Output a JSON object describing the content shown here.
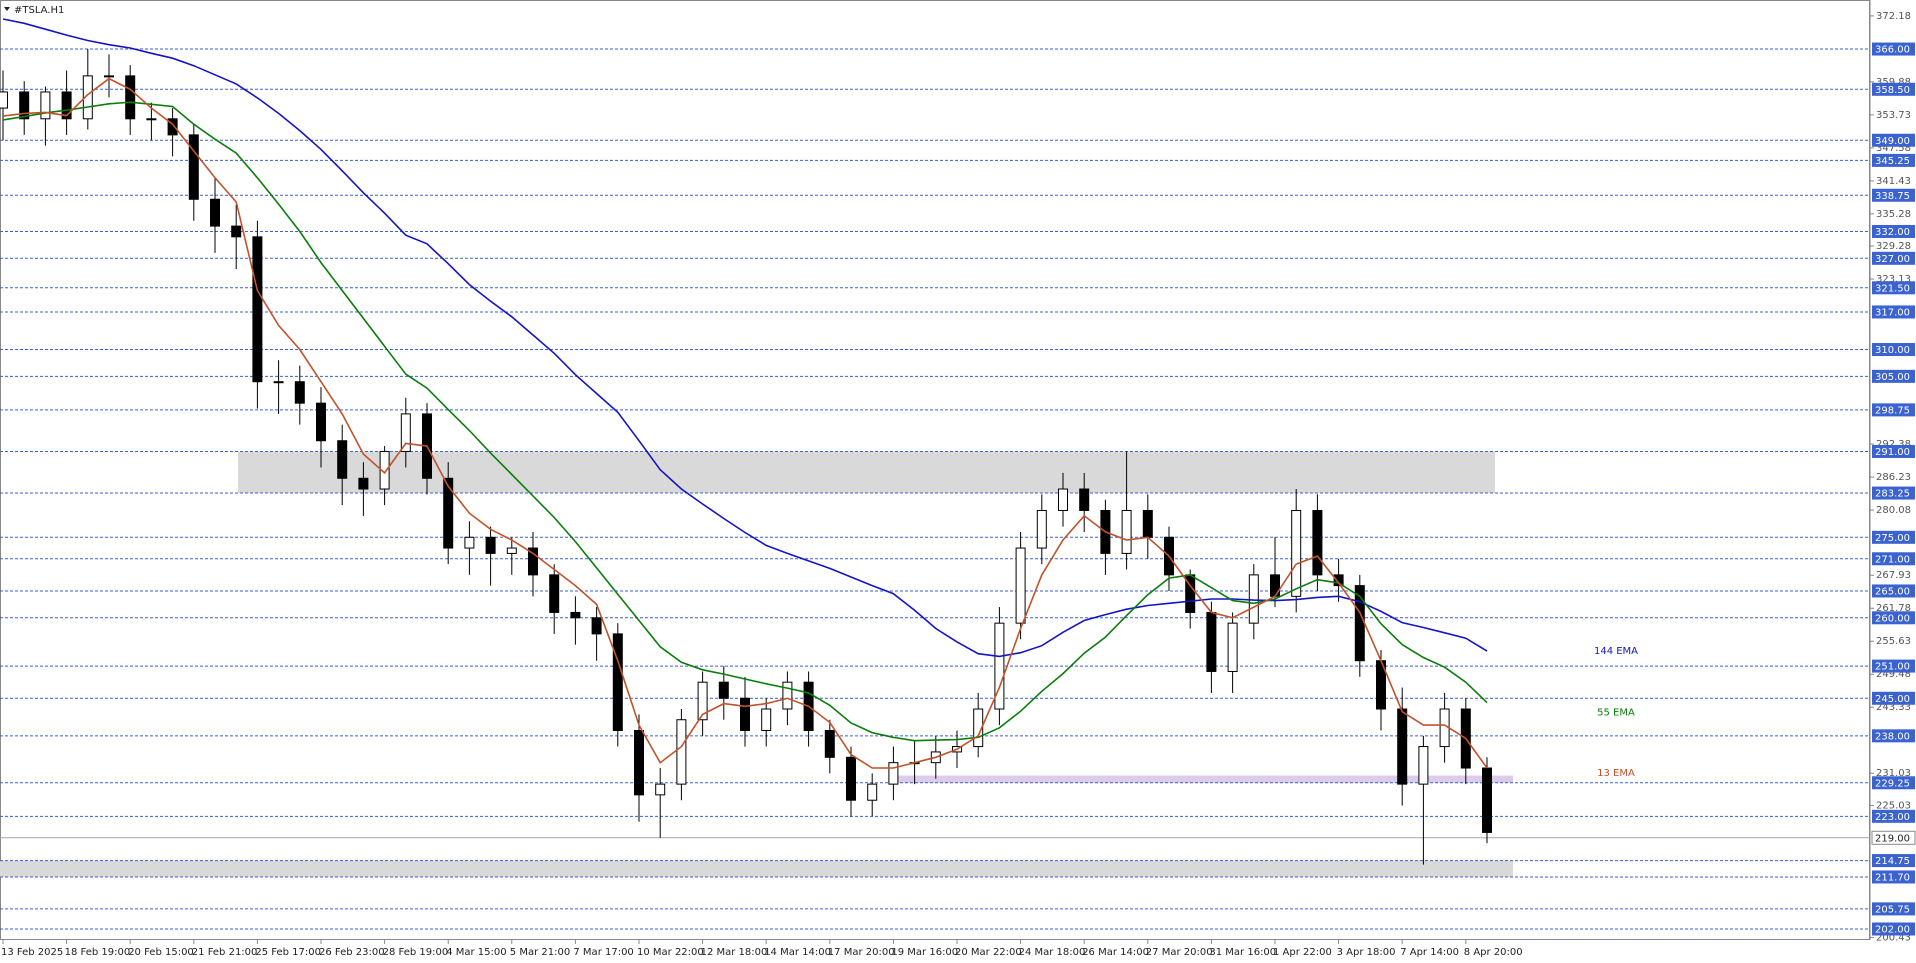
{
  "chart_data": {
    "type": "candlestick",
    "title": "#TSLA.H1",
    "categories": [
      "13 Feb 2025",
      null,
      null,
      "18 Feb 19:00",
      null,
      null,
      "20 Feb 15:00",
      null,
      null,
      "21 Feb 21:00",
      null,
      null,
      "25 Feb 17:00",
      null,
      null,
      "26 Feb 23:00",
      null,
      null,
      "28 Feb 19:00",
      null,
      null,
      "4 Mar 15:00",
      null,
      null,
      "5 Mar 21:00",
      null,
      null,
      "7 Mar 17:00",
      null,
      null,
      "10 Mar 22:00",
      null,
      null,
      "12 Mar 18:00",
      null,
      null,
      "14 Mar 14:00",
      null,
      null,
      "17 Mar 20:00",
      null,
      null,
      "19 Mar 16:00",
      null,
      null,
      "20 Mar 22:00",
      null,
      null,
      "24 Mar 18:00",
      null,
      null,
      "26 Mar 14:00",
      null,
      null,
      "27 Mar 20:00",
      null,
      null,
      "31 Mar 16:00",
      null,
      null,
      "1 Apr 22:00",
      null,
      null,
      "3 Apr 18:00",
      null,
      null,
      "7 Apr 14:00",
      null,
      null,
      "8 Apr 20:00",
      null
    ],
    "open": [
      355,
      358,
      353,
      358,
      353,
      361,
      361,
      353,
      353,
      350,
      338,
      333,
      331,
      304,
      304,
      300,
      293,
      286,
      284,
      291,
      298,
      286,
      273,
      275,
      272,
      273,
      268,
      261,
      260,
      257,
      239,
      227,
      229,
      241,
      248,
      245,
      239,
      243,
      248,
      239,
      234,
      226,
      229,
      233,
      233,
      235,
      236,
      243,
      259,
      273,
      280,
      284,
      280,
      272,
      280,
      275,
      268,
      261,
      250,
      259,
      268,
      264,
      280,
      268,
      266,
      252,
      243,
      229,
      236,
      243,
      232
    ],
    "high": [
      362,
      360,
      359,
      362,
      366,
      365,
      363,
      356,
      355,
      352,
      342,
      337,
      334,
      308,
      307,
      303,
      296,
      289,
      292,
      301,
      300,
      289,
      278,
      277,
      275,
      276,
      270,
      264,
      262,
      259,
      242,
      232,
      243,
      250,
      251,
      249,
      245,
      250,
      250,
      241,
      236,
      231,
      236,
      237,
      238,
      239,
      246,
      262,
      276,
      283,
      287,
      287,
      282,
      291,
      283,
      277,
      269,
      263,
      261,
      270,
      275,
      284,
      283,
      271,
      268,
      254,
      247,
      238,
      246,
      245,
      234
    ],
    "low": [
      349,
      350,
      348,
      350,
      351,
      357,
      350,
      349,
      346,
      334,
      328,
      325,
      299,
      298,
      296,
      288,
      281,
      279,
      281,
      288,
      283,
      270,
      268,
      266,
      268,
      264,
      257,
      255,
      252,
      236,
      222,
      219,
      226,
      238,
      241,
      236,
      236,
      240,
      236,
      231,
      223,
      223,
      226,
      229,
      230,
      232,
      234,
      240,
      256,
      270,
      277,
      276,
      268,
      269,
      271,
      265,
      258,
      246,
      246,
      256,
      262,
      261,
      265,
      263,
      249,
      239,
      225,
      214,
      233,
      229,
      218
    ],
    "close": [
      358,
      353,
      358,
      353,
      361,
      361,
      353,
      353,
      350,
      338,
      333,
      331,
      304,
      304,
      300,
      293,
      286,
      284,
      291,
      298,
      286,
      273,
      275,
      272,
      273,
      268,
      261,
      260,
      257,
      239,
      227,
      229,
      241,
      248,
      245,
      239,
      243,
      248,
      239,
      234,
      226,
      229,
      233,
      233,
      235,
      236,
      243,
      259,
      273,
      280,
      284,
      280,
      272,
      280,
      275,
      268,
      261,
      250,
      259,
      268,
      264,
      280,
      268,
      266,
      252,
      243,
      229,
      236,
      243,
      232,
      220
    ],
    "up_color": "#ffffff",
    "down_color": "#000000",
    "series": [
      {
        "name": "144 EMA",
        "color": "#1414c8",
        "values": [
          371.6,
          370.8,
          369.7,
          368.6,
          367.6,
          366.8,
          366.2,
          365.2,
          364.3,
          362.9,
          361.2,
          359.5,
          356.9,
          354.0,
          350.8,
          347.3,
          343.3,
          339.2,
          335.4,
          331.3,
          329.7,
          326.0,
          322.1,
          319.0,
          316.1,
          312.7,
          309.3,
          305.3,
          301.8,
          298.3,
          293.0,
          287.6,
          284.0,
          281.2,
          278.5,
          275.9,
          273.5,
          272.0,
          270.6,
          269.2,
          267.6,
          266.0,
          264.5,
          261.4,
          258.0,
          255.5,
          253.3,
          252.8,
          253.5,
          254.8,
          257.3,
          259.5,
          260.6,
          261.6,
          262.3,
          262.7,
          263.1,
          263.5,
          263.5,
          263.3,
          263.2,
          263.4,
          263.8,
          264.0,
          263.0,
          261.2,
          259.1,
          258.2,
          257.2,
          256.2,
          253.8
        ]
      },
      {
        "name": "55 EMA",
        "color": "#0a7d0a",
        "values": [
          352.8,
          353.4,
          354.1,
          354.6,
          355.2,
          355.8,
          356.1,
          355.7,
          355.3,
          352.0,
          349.2,
          346.6,
          342.0,
          337.1,
          332.0,
          326.2,
          321.0,
          315.8,
          310.6,
          305.4,
          302.8,
          298.8,
          294.9,
          290.7,
          286.7,
          282.7,
          278.7,
          274.2,
          269.3,
          264.4,
          259.5,
          254.6,
          251.7,
          250.3,
          249.5,
          248.6,
          247.7,
          246.9,
          246.0,
          243.7,
          240.4,
          238.6,
          237.7,
          237.1,
          237.2,
          237.3,
          237.7,
          239.5,
          242.6,
          246.3,
          249.6,
          253.4,
          256.4,
          260.4,
          264.3,
          267.4,
          268.0,
          265.6,
          263.2,
          262.7,
          263.5,
          265.4,
          267.1,
          266.5,
          264.0,
          258.9,
          255.0,
          252.6,
          250.8,
          248.0,
          244.2
        ]
      },
      {
        "name": "13 EMA",
        "color": "#c0532a",
        "values": [
          353.5,
          354.0,
          354.2,
          353.6,
          357.5,
          360.5,
          358.5,
          355.0,
          352.0,
          347.0,
          342.0,
          337.5,
          321.0,
          314.5,
          310.0,
          304.0,
          298.0,
          290.5,
          287.0,
          292.5,
          292.0,
          284.5,
          279.5,
          276.5,
          274.5,
          272.0,
          269.0,
          266.0,
          262.5,
          252.0,
          240.0,
          233.0,
          236.0,
          242.0,
          244.0,
          243.5,
          244.0,
          245.0,
          243.5,
          240.5,
          234.5,
          232.0,
          232.0,
          233.0,
          234.0,
          235.5,
          238.0,
          247.0,
          258.0,
          268.0,
          274.5,
          279.0,
          276.0,
          274.5,
          275.0,
          271.5,
          266.0,
          261.0,
          260.0,
          262.0,
          264.0,
          270.0,
          271.5,
          266.5,
          261.0,
          252.0,
          242.5,
          240.0,
          240.0,
          237.5,
          232.0
        ]
      }
    ],
    "ylim": [
      199.95,
      375.14
    ],
    "yticks": [
      372.18,
      359.88,
      353.73,
      347.58,
      341.43,
      335.28,
      329.28,
      323.13,
      292.38,
      286.23,
      280.08,
      267.93,
      261.78,
      255.63,
      249.48,
      243.33,
      231.03,
      225.03,
      200.43
    ],
    "levels": [
      {
        "value": 366,
        "label": "366.00"
      },
      {
        "value": 358.5,
        "label": "358.50"
      },
      {
        "value": 349,
        "label": "349.00"
      },
      {
        "value": 345.25,
        "label": "345.25"
      },
      {
        "value": 338.75,
        "label": "338.75"
      },
      {
        "value": 332,
        "label": "332.00"
      },
      {
        "value": 327,
        "label": "327.00"
      },
      {
        "value": 321.5,
        "label": "321.50"
      },
      {
        "value": 317,
        "label": "317.00"
      },
      {
        "value": 310,
        "label": "310.00"
      },
      {
        "value": 305,
        "label": "305.00"
      },
      {
        "value": 298.75,
        "label": "298.75"
      },
      {
        "value": 291,
        "label": "291.00"
      },
      {
        "value": 283.25,
        "label": "283.25"
      },
      {
        "value": 275,
        "label": "275.00"
      },
      {
        "value": 271,
        "label": "271.00"
      },
      {
        "value": 265,
        "label": "265.00"
      },
      {
        "value": 260,
        "label": "260.00"
      },
      {
        "value": 251,
        "label": "251.00"
      },
      {
        "value": 245,
        "label": "245.00"
      },
      {
        "value": 238,
        "label": "238.00"
      },
      {
        "value": 229.25,
        "label": "229.25"
      },
      {
        "value": 223,
        "label": "223.00"
      },
      {
        "value": 214.75,
        "label": "214.75"
      },
      {
        "value": 211.7,
        "label": "211.70"
      },
      {
        "value": 205.75,
        "label": "205.75"
      },
      {
        "value": 202,
        "label": "202.00"
      }
    ],
    "level_color": "#3a62d0",
    "current_price": {
      "value": 219,
      "label": "219.00"
    },
    "zones": [
      {
        "low": 283.25,
        "high": 291,
        "color": "#d9d9d9"
      },
      {
        "low": 211.7,
        "high": 214.75,
        "color": "#d9d9d9"
      },
      {
        "low": 229.25,
        "high": 230.6,
        "color": "#dccbea"
      }
    ]
  }
}
